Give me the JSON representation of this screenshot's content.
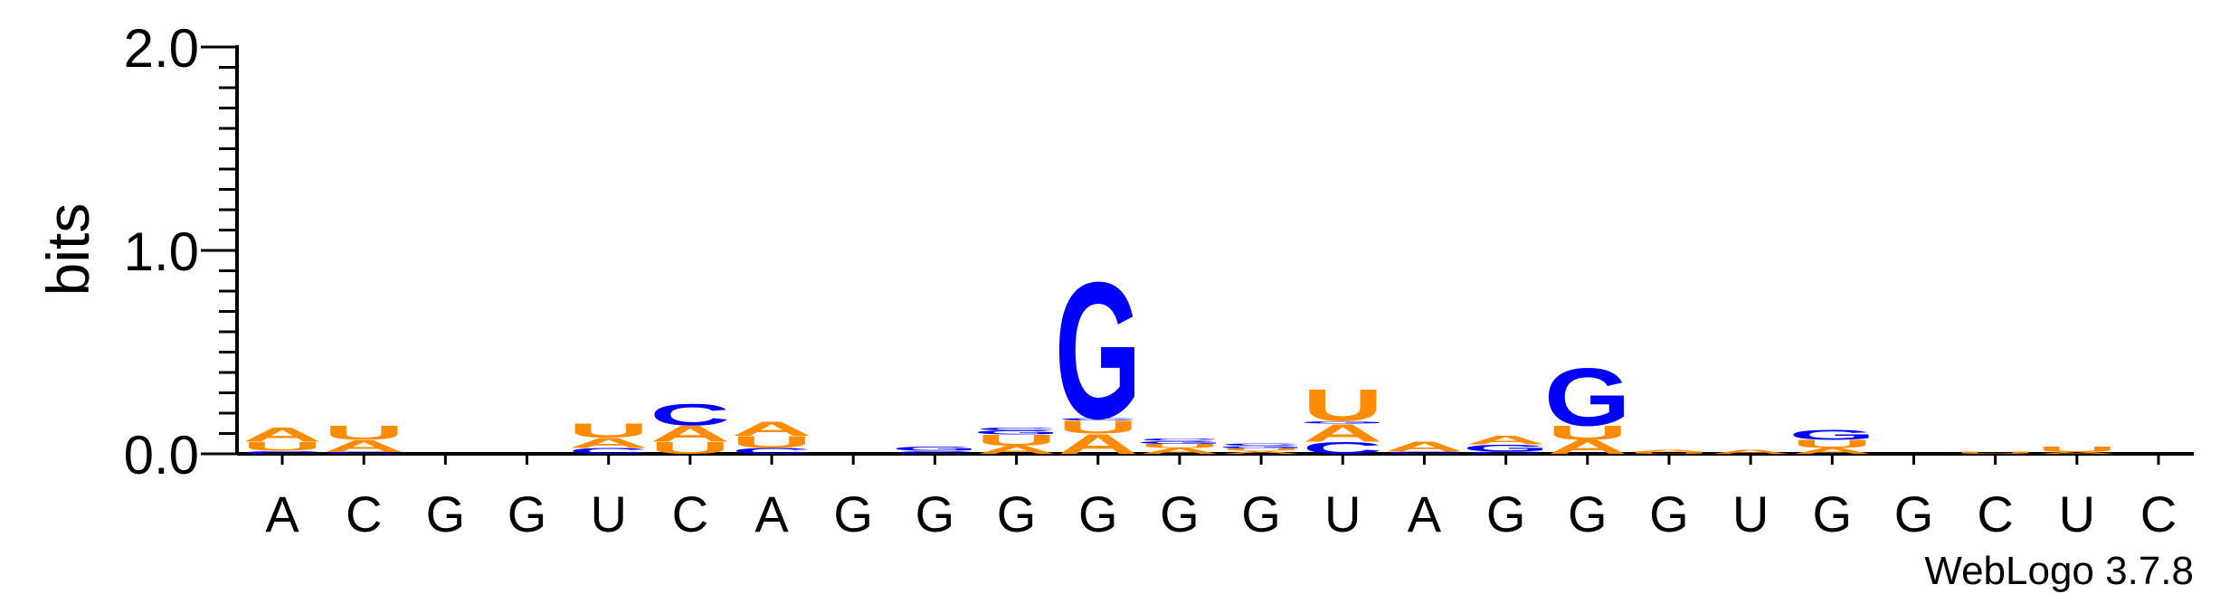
{
  "chart_data": {
    "type": "sequence-logo",
    "title": "",
    "ylabel": "bits",
    "ylim": [
      0,
      2.0
    ],
    "yticks": [
      "0.0",
      "1.0",
      "2.0"
    ],
    "xlabels": [
      "A",
      "C",
      "G",
      "G",
      "U",
      "C",
      "A",
      "G",
      "G",
      "G",
      "G",
      "G",
      "G",
      "U",
      "A",
      "G",
      "G",
      "G",
      "U",
      "G",
      "G",
      "C",
      "U",
      "C"
    ],
    "colors": {
      "A": "#ff8c00",
      "U": "#ff8c00",
      "G": "#0000ff",
      "C": "#0000ff"
    },
    "columns": [
      [
        [
          "C",
          0.015
        ],
        [
          "U",
          0.045
        ],
        [
          "A",
          0.07
        ]
      ],
      [
        [
          "C",
          0.01
        ],
        [
          "A",
          0.06
        ],
        [
          "U",
          0.07
        ]
      ],
      [],
      [],
      [
        [
          "C",
          0.03
        ],
        [
          "A",
          0.05
        ],
        [
          "U",
          0.07
        ]
      ],
      [
        [
          "U",
          0.06
        ],
        [
          "A",
          0.08
        ],
        [
          "C",
          0.11
        ]
      ],
      [
        [
          "C",
          0.03
        ],
        [
          "U",
          0.06
        ],
        [
          "A",
          0.07
        ]
      ],
      [],
      [
        [
          "C",
          0.015
        ],
        [
          "G",
          0.02
        ]
      ],
      [
        [
          "A",
          0.04
        ],
        [
          "U",
          0.055
        ],
        [
          "G",
          0.02
        ],
        [
          "C",
          0.015
        ]
      ],
      [
        [
          "A",
          0.1
        ],
        [
          "U",
          0.065
        ],
        [
          "C",
          0.012
        ],
        [
          "G",
          0.69
        ]
      ],
      [
        [
          "A",
          0.03
        ],
        [
          "U",
          0.02
        ],
        [
          "G",
          0.015
        ],
        [
          "C",
          0.01
        ]
      ],
      [
        [
          "A",
          0.015
        ],
        [
          "U",
          0.012
        ],
        [
          "G",
          0.012
        ],
        [
          "C",
          0.01
        ]
      ],
      [
        [
          "C",
          0.06
        ],
        [
          "A",
          0.09
        ],
        [
          "G",
          0.012
        ],
        [
          "U",
          0.16
        ]
      ],
      [
        [
          "C",
          0.012
        ],
        [
          "A",
          0.05
        ]
      ],
      [
        [
          "C",
          0.012
        ],
        [
          "G",
          0.035
        ],
        [
          "A",
          0.045
        ]
      ],
      [
        [
          "A",
          0.07
        ],
        [
          "U",
          0.07
        ],
        [
          "G",
          0.29
        ]
      ],
      [
        [
          "U",
          0.008
        ],
        [
          "A",
          0.01
        ]
      ],
      [
        [
          "A",
          0.02
        ]
      ],
      [
        [
          "A",
          0.03
        ],
        [
          "U",
          0.04
        ],
        [
          "G",
          0.05
        ]
      ],
      [],
      [
        [
          "U",
          0.01
        ]
      ],
      [
        [
          "A",
          0.01
        ],
        [
          "U",
          0.025
        ]
      ],
      []
    ]
  },
  "watermark": "WebLogo 3.7.8"
}
